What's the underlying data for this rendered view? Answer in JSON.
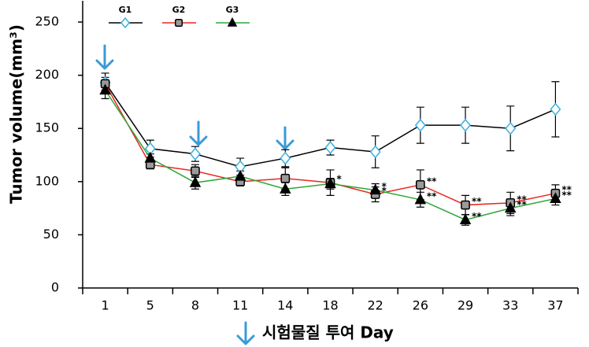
{
  "chart_data": {
    "type": "line",
    "y_label": "Tumor volume(mm³)",
    "x_label": "시험물질 투여 Day",
    "categories": [
      "1",
      "5",
      "8",
      "11",
      "14",
      "18",
      "22",
      "26",
      "29",
      "33",
      "37"
    ],
    "ylim": [
      0,
      270
    ],
    "yticks": [
      0,
      50,
      100,
      150,
      200,
      250
    ],
    "series": [
      {
        "name": "G1",
        "color": "#000000",
        "marker": "diamond",
        "marker_fill": "#ffffff",
        "marker_stroke": "#3ab0e0",
        "values": [
          193,
          131,
          126,
          114,
          122,
          132,
          128,
          153,
          153,
          150,
          168
        ],
        "errors": [
          9,
          8,
          7,
          8,
          8,
          7,
          15,
          17,
          17,
          21,
          26
        ],
        "significance": [
          null,
          null,
          null,
          null,
          null,
          null,
          null,
          null,
          null,
          null,
          null
        ]
      },
      {
        "name": "G2",
        "color": "#e8271f",
        "marker": "square",
        "marker_fill": "#9a9a9a",
        "marker_stroke": "#000000",
        "values": [
          192,
          116,
          110,
          100,
          103,
          99,
          88,
          97,
          78,
          80,
          89
        ],
        "errors": [
          6,
          4,
          6,
          4,
          10,
          12,
          7,
          14,
          9,
          10,
          8
        ],
        "significance": [
          null,
          null,
          null,
          null,
          null,
          "*",
          "*",
          "**",
          "**",
          "**",
          "**"
        ]
      },
      {
        "name": "G3",
        "color": "#2ea836",
        "marker": "triangle",
        "marker_fill": "#000000",
        "marker_stroke": "#000000",
        "values": [
          186,
          122,
          99,
          105,
          93,
          98,
          92,
          83,
          64,
          75,
          84
        ],
        "errors": [
          8,
          4,
          6,
          5,
          6,
          5,
          6,
          7,
          5,
          7,
          6
        ],
        "significance": [
          null,
          null,
          null,
          null,
          null,
          null,
          "*",
          "**",
          "**",
          "**",
          "**"
        ]
      }
    ]
  }
}
